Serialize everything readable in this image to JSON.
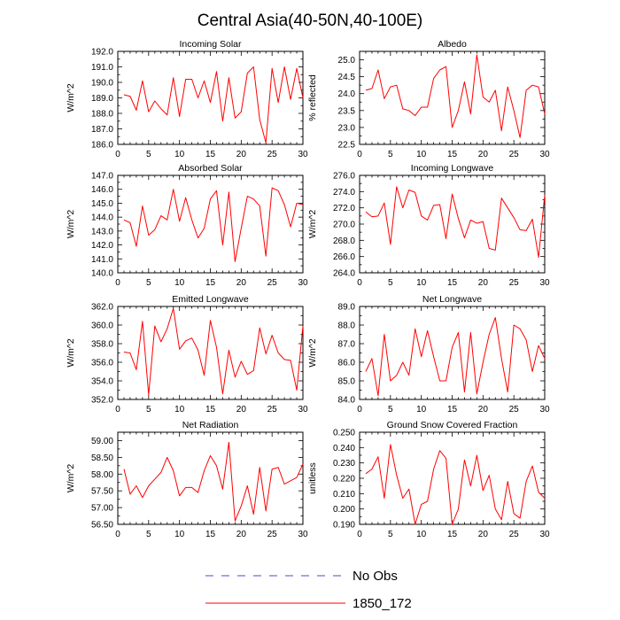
{
  "figure_title": "Central Asia(40-50N,40-100E)",
  "colors": {
    "series": "#ff0000",
    "obs": "#4a4acf",
    "axis": "#000000"
  },
  "legend": {
    "items": [
      {
        "label": "No Obs",
        "style": "dashed",
        "color": "#4a4acf"
      },
      {
        "label": "1850_172",
        "style": "solid",
        "color": "#ff0000"
      }
    ]
  },
  "chart_data": [
    {
      "type": "line",
      "title": "Incoming Solar",
      "ylabel": "W/m^2",
      "xlabel": "",
      "xlim": [
        0,
        30
      ],
      "ylim": [
        186.0,
        192.0
      ],
      "xticks": [
        0,
        5,
        10,
        15,
        20,
        25,
        30
      ],
      "yticks": [
        186.0,
        187.0,
        188.0,
        189.0,
        190.0,
        191.0,
        192.0
      ],
      "ydecimals": 1,
      "series": [
        {
          "name": "1850_172",
          "x": [
            1,
            2,
            3,
            4,
            5,
            6,
            7,
            8,
            9,
            10,
            11,
            12,
            13,
            14,
            15,
            16,
            17,
            18,
            19,
            20,
            21,
            22,
            23,
            24,
            25,
            26,
            27,
            28,
            29,
            30
          ],
          "values": [
            189.2,
            189.1,
            188.2,
            190.1,
            188.1,
            188.8,
            188.3,
            187.9,
            190.3,
            187.8,
            190.2,
            190.2,
            189.0,
            190.1,
            188.7,
            190.7,
            187.5,
            190.3,
            187.7,
            188.1,
            190.6,
            191.0,
            187.6,
            186.1,
            190.9,
            188.7,
            191.0,
            188.9,
            190.9,
            189.0
          ]
        }
      ]
    },
    {
      "type": "line",
      "title": "Albedo",
      "ylabel": "% reflected",
      "xlabel": "",
      "xlim": [
        0,
        30
      ],
      "ylim": [
        22.5,
        25.25
      ],
      "xticks": [
        0,
        5,
        10,
        15,
        20,
        25,
        30
      ],
      "yticks": [
        22.5,
        23.0,
        23.5,
        24.0,
        24.5,
        25.0
      ],
      "ydecimals": 1,
      "series": [
        {
          "name": "1850_172",
          "x": [
            1,
            2,
            3,
            4,
            5,
            6,
            7,
            8,
            9,
            10,
            11,
            12,
            13,
            14,
            15,
            16,
            17,
            18,
            19,
            20,
            21,
            22,
            23,
            24,
            25,
            26,
            27,
            28,
            29,
            30
          ],
          "values": [
            24.1,
            24.15,
            24.7,
            23.85,
            24.2,
            24.25,
            23.55,
            23.5,
            23.35,
            23.6,
            23.6,
            24.45,
            24.7,
            24.8,
            23.0,
            23.5,
            24.35,
            23.4,
            25.15,
            23.9,
            23.75,
            24.1,
            22.9,
            24.2,
            23.5,
            22.7,
            24.1,
            24.25,
            24.2,
            23.4
          ]
        }
      ]
    },
    {
      "type": "line",
      "title": "Absorbed Solar",
      "ylabel": "W/m^2",
      "xlabel": "",
      "xlim": [
        0,
        30
      ],
      "ylim": [
        140.0,
        147.0
      ],
      "xticks": [
        0,
        5,
        10,
        15,
        20,
        25,
        30
      ],
      "yticks": [
        140.0,
        141.0,
        142.0,
        143.0,
        144.0,
        145.0,
        146.0,
        147.0
      ],
      "ydecimals": 1,
      "series": [
        {
          "name": "1850_172",
          "x": [
            1,
            2,
            3,
            4,
            5,
            6,
            7,
            8,
            9,
            10,
            11,
            12,
            13,
            14,
            15,
            16,
            17,
            18,
            19,
            20,
            21,
            22,
            23,
            24,
            25,
            26,
            27,
            28,
            29,
            30
          ],
          "values": [
            143.8,
            143.6,
            141.9,
            144.8,
            142.7,
            143.1,
            144.1,
            143.8,
            146.0,
            143.7,
            145.4,
            143.8,
            142.5,
            143.2,
            145.3,
            145.9,
            142.0,
            145.8,
            140.8,
            143.2,
            145.5,
            145.3,
            144.8,
            141.2,
            146.1,
            145.9,
            144.9,
            143.3,
            145.0,
            144.9
          ]
        }
      ]
    },
    {
      "type": "line",
      "title": "Incoming Longwave",
      "ylabel": "W/m^2",
      "xlabel": "",
      "xlim": [
        0,
        30
      ],
      "ylim": [
        264.0,
        276.0
      ],
      "xticks": [
        0,
        5,
        10,
        15,
        20,
        25,
        30
      ],
      "yticks": [
        264.0,
        266.0,
        268.0,
        270.0,
        272.0,
        274.0,
        276.0
      ],
      "ydecimals": 1,
      "series": [
        {
          "name": "1850_172",
          "x": [
            1,
            2,
            3,
            4,
            5,
            6,
            7,
            8,
            9,
            10,
            11,
            12,
            13,
            14,
            15,
            16,
            17,
            18,
            19,
            20,
            21,
            22,
            23,
            24,
            25,
            26,
            27,
            28,
            29,
            30
          ],
          "values": [
            271.5,
            270.9,
            271.0,
            272.6,
            267.5,
            274.6,
            272.0,
            274.2,
            273.9,
            271.0,
            270.5,
            272.3,
            272.4,
            268.2,
            273.7,
            270.7,
            268.3,
            270.5,
            270.1,
            270.3,
            267.0,
            266.8,
            273.2,
            272.0,
            270.8,
            269.3,
            269.2,
            270.6,
            265.9,
            273.6
          ]
        }
      ]
    },
    {
      "type": "line",
      "title": "Emitted Longwave",
      "ylabel": "W/m^2",
      "xlabel": "",
      "xlim": [
        0,
        30
      ],
      "ylim": [
        352.0,
        362.0
      ],
      "xticks": [
        0,
        5,
        10,
        15,
        20,
        25,
        30
      ],
      "yticks": [
        352.0,
        354.0,
        356.0,
        358.0,
        360.0,
        362.0
      ],
      "ydecimals": 1,
      "series": [
        {
          "name": "1850_172",
          "x": [
            1,
            2,
            3,
            4,
            5,
            6,
            7,
            8,
            9,
            10,
            11,
            12,
            13,
            14,
            15,
            16,
            17,
            18,
            19,
            20,
            21,
            22,
            23,
            24,
            25,
            26,
            27,
            28,
            29,
            30
          ],
          "values": [
            357.1,
            357.0,
            355.2,
            360.4,
            352.5,
            359.9,
            358.2,
            359.6,
            361.8,
            357.4,
            358.3,
            358.6,
            357.3,
            354.6,
            360.5,
            357.6,
            352.6,
            357.3,
            354.4,
            356.1,
            354.7,
            355.1,
            359.7,
            356.9,
            358.9,
            357.0,
            356.3,
            356.2,
            353.0,
            359.9
          ]
        }
      ]
    },
    {
      "type": "line",
      "title": "Net Longwave",
      "ylabel": "W/m^2",
      "xlabel": "",
      "xlim": [
        0,
        30
      ],
      "ylim": [
        84.0,
        89.0
      ],
      "xticks": [
        0,
        5,
        10,
        15,
        20,
        25,
        30
      ],
      "yticks": [
        84.0,
        85.0,
        86.0,
        87.0,
        88.0,
        89.0
      ],
      "ydecimals": 1,
      "series": [
        {
          "name": "1850_172",
          "x": [
            1,
            2,
            3,
            4,
            5,
            6,
            7,
            8,
            9,
            10,
            11,
            12,
            13,
            14,
            15,
            16,
            17,
            18,
            19,
            20,
            21,
            22,
            23,
            24,
            25,
            26,
            27,
            28,
            29,
            30
          ],
          "values": [
            85.5,
            86.2,
            84.2,
            87.5,
            85.0,
            85.3,
            86.0,
            85.3,
            87.8,
            86.3,
            87.7,
            86.3,
            85.0,
            85.0,
            86.8,
            87.6,
            84.4,
            87.6,
            84.3,
            86.0,
            87.5,
            88.4,
            86.2,
            84.4,
            88.0,
            87.8,
            87.2,
            85.5,
            86.9,
            86.2
          ]
        }
      ]
    },
    {
      "type": "line",
      "title": "Net Radiation",
      "ylabel": "W/m^2",
      "xlabel": "",
      "xlim": [
        0,
        30
      ],
      "ylim": [
        56.5,
        59.25
      ],
      "xticks": [
        0,
        5,
        10,
        15,
        20,
        25,
        30
      ],
      "yticks": [
        56.5,
        57.0,
        57.5,
        58.0,
        58.5,
        59.0
      ],
      "ydecimals": 2,
      "series": [
        {
          "name": "1850_172",
          "x": [
            1,
            2,
            3,
            4,
            5,
            6,
            7,
            8,
            9,
            10,
            11,
            12,
            13,
            14,
            15,
            16,
            17,
            18,
            19,
            20,
            21,
            22,
            23,
            24,
            25,
            26,
            27,
            28,
            29,
            30
          ],
          "values": [
            58.15,
            57.4,
            57.65,
            57.3,
            57.65,
            57.85,
            58.05,
            58.5,
            58.1,
            57.35,
            57.6,
            57.6,
            57.45,
            58.1,
            58.55,
            58.25,
            57.55,
            58.95,
            56.6,
            57.05,
            57.65,
            56.8,
            58.2,
            56.9,
            58.15,
            58.2,
            57.7,
            57.8,
            57.9,
            58.3
          ]
        }
      ]
    },
    {
      "type": "line",
      "title": "Ground Snow Covered Fraction",
      "ylabel": "unitless",
      "xlabel": "",
      "xlim": [
        0,
        30
      ],
      "ylim": [
        0.19,
        0.25
      ],
      "xticks": [
        0,
        5,
        10,
        15,
        20,
        25,
        30
      ],
      "yticks": [
        0.19,
        0.2,
        0.21,
        0.22,
        0.23,
        0.24,
        0.25
      ],
      "ydecimals": 3,
      "series": [
        {
          "name": "1850_172",
          "x": [
            1,
            2,
            3,
            4,
            5,
            6,
            7,
            8,
            9,
            10,
            11,
            12,
            13,
            14,
            15,
            16,
            17,
            18,
            19,
            20,
            21,
            22,
            23,
            24,
            25,
            26,
            27,
            28,
            29,
            30
          ],
          "values": [
            0.223,
            0.226,
            0.234,
            0.207,
            0.242,
            0.222,
            0.207,
            0.213,
            0.19,
            0.203,
            0.205,
            0.226,
            0.238,
            0.233,
            0.19,
            0.2,
            0.232,
            0.215,
            0.235,
            0.212,
            0.222,
            0.2,
            0.193,
            0.218,
            0.197,
            0.194,
            0.218,
            0.228,
            0.211,
            0.207
          ]
        }
      ]
    }
  ]
}
